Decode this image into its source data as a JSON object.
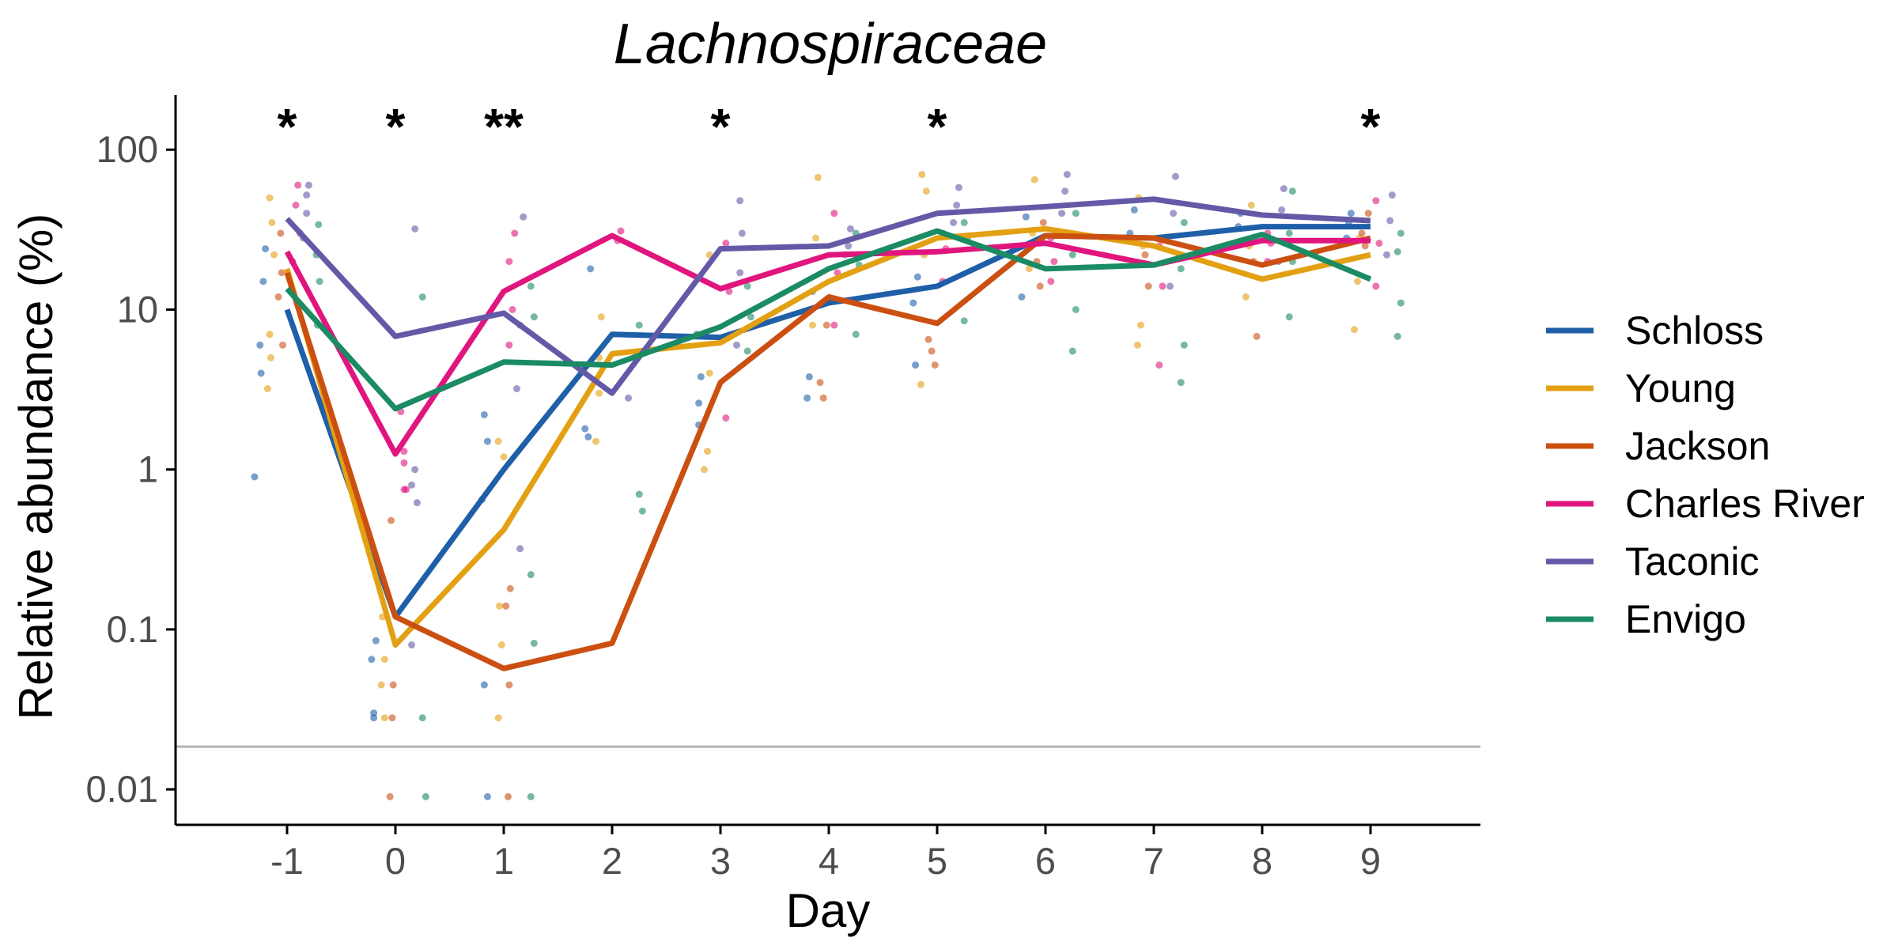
{
  "chart_data": {
    "type": "line",
    "title": "Lachnospiraceae",
    "xlabel": "Day",
    "ylabel": "Relative abundance (%)",
    "yscale": "log",
    "ylim": [
      0.006,
      220
    ],
    "yticks": [
      100,
      10,
      1,
      0.1,
      0.01
    ],
    "ytick_labels": [
      "100",
      "10",
      "1",
      "0.1",
      "0.01"
    ],
    "categories": [
      "-1",
      "0",
      "1",
      "2",
      "3",
      "4",
      "5",
      "6",
      "7",
      "8",
      "9"
    ],
    "reference_line": 0.0185,
    "grid": false,
    "legend": "right",
    "significance": [
      {
        "x": "-1",
        "label": "*"
      },
      {
        "x": "0",
        "label": "*"
      },
      {
        "x": "1",
        "label": "**"
      },
      {
        "x": "3",
        "label": "*"
      },
      {
        "x": "5",
        "label": "*"
      },
      {
        "x": "9",
        "label": "*"
      }
    ],
    "series": [
      {
        "name": "Schloss",
        "color": "#1f5fa8",
        "values": [
          10,
          0.12,
          1,
          7,
          6.7,
          11,
          14,
          29,
          28,
          33,
          33
        ]
      },
      {
        "name": "Young",
        "color": "#e3a012",
        "values": [
          18,
          0.08,
          0.42,
          5.3,
          6.2,
          15,
          28,
          32,
          25,
          15.5,
          22
        ]
      },
      {
        "name": "Jackson",
        "color": "#cc4f12",
        "values": [
          17,
          0.12,
          0.057,
          0.082,
          3.5,
          12,
          8.2,
          29,
          28,
          19,
          28
        ]
      },
      {
        "name": "Charles River",
        "color": "#e0157e",
        "values": [
          23,
          1.25,
          13,
          29,
          13.5,
          22,
          23,
          26,
          19,
          27,
          27
        ]
      },
      {
        "name": "Taconic",
        "color": "#6459a7",
        "values": [
          37,
          6.8,
          9.5,
          3,
          24,
          25,
          40,
          44,
          49,
          39,
          36
        ]
      },
      {
        "name": "Envigo",
        "color": "#1b8b64",
        "values": [
          13.5,
          2.4,
          4.7,
          4.5,
          7.8,
          18,
          31,
          18,
          19,
          29.5,
          15.5
        ]
      }
    ],
    "points": [
      {
        "name": "Schloss",
        "color": "#1f5fa8",
        "values": [
          [
            -1.3,
            0.9
          ],
          [
            -1.25,
            6
          ],
          [
            -1.22,
            15
          ],
          [
            -1.2,
            24
          ],
          [
            -1.24,
            4
          ],
          [
            -0.2,
            0.028
          ],
          [
            -0.22,
            0.065
          ],
          [
            -0.18,
            0.085
          ],
          [
            -0.2,
            0.03
          ],
          [
            0.85,
            0.009
          ],
          [
            0.82,
            0.045
          ],
          [
            0.8,
            0.65
          ],
          [
            0.85,
            1.5
          ],
          [
            0.82,
            2.2
          ],
          [
            1.75,
            1.8
          ],
          [
            1.78,
            1.6
          ],
          [
            1.8,
            18
          ],
          [
            2.8,
            2.6
          ],
          [
            2.82,
            3.8
          ],
          [
            2.78,
            7
          ],
          [
            2.8,
            1.9
          ],
          [
            3.8,
            2.8
          ],
          [
            3.82,
            3.8
          ],
          [
            3.85,
            13
          ],
          [
            4.8,
            4.5
          ],
          [
            4.78,
            11
          ],
          [
            4.82,
            16
          ],
          [
            5.78,
            12
          ],
          [
            5.8,
            25
          ],
          [
            5.82,
            38
          ],
          [
            6.78,
            30
          ],
          [
            6.82,
            42
          ],
          [
            7.78,
            33
          ],
          [
            7.8,
            40
          ],
          [
            8.78,
            28
          ],
          [
            8.8,
            35
          ],
          [
            8.82,
            40
          ]
        ]
      },
      {
        "name": "Young",
        "color": "#e3a012",
        "values": [
          [
            -1.18,
            3.2
          ],
          [
            -1.15,
            5
          ],
          [
            -1.16,
            7
          ],
          [
            -1.12,
            22
          ],
          [
            -1.14,
            35
          ],
          [
            -1.16,
            50
          ],
          [
            -0.12,
            0.12
          ],
          [
            -0.1,
            0.065
          ],
          [
            -0.13,
            0.045
          ],
          [
            -0.1,
            0.028
          ],
          [
            0.95,
            0.028
          ],
          [
            0.98,
            0.08
          ],
          [
            0.96,
            0.14
          ],
          [
            1,
            1.2
          ],
          [
            0.95,
            1.5
          ],
          [
            1.85,
            1.5
          ],
          [
            1.88,
            3
          ],
          [
            1.9,
            9
          ],
          [
            1.88,
            5
          ],
          [
            2.85,
            1
          ],
          [
            2.88,
            1.3
          ],
          [
            2.9,
            4
          ],
          [
            2.86,
            7
          ],
          [
            2.9,
            22
          ],
          [
            3.85,
            8
          ],
          [
            3.88,
            28
          ],
          [
            3.9,
            67
          ],
          [
            4.85,
            3.4
          ],
          [
            4.88,
            22
          ],
          [
            4.9,
            55
          ],
          [
            4.86,
            70
          ],
          [
            5.85,
            18
          ],
          [
            5.88,
            30
          ],
          [
            5.9,
            65
          ],
          [
            6.85,
            6
          ],
          [
            6.88,
            8
          ],
          [
            6.9,
            25
          ],
          [
            6.86,
            50
          ],
          [
            7.85,
            12
          ],
          [
            7.88,
            25
          ],
          [
            7.9,
            45
          ],
          [
            8.85,
            7.5
          ],
          [
            8.88,
            15
          ],
          [
            8.9,
            28
          ]
        ]
      },
      {
        "name": "Jackson",
        "color": "#cc4f12",
        "values": [
          [
            -1.08,
            12
          ],
          [
            -1.05,
            17
          ],
          [
            -1.06,
            30
          ],
          [
            -1.04,
            6
          ],
          [
            -0.05,
            0.009
          ],
          [
            -0.03,
            0.028
          ],
          [
            -0.02,
            0.045
          ],
          [
            -0.04,
            0.48
          ],
          [
            1.04,
            0.009
          ],
          [
            1.05,
            0.045
          ],
          [
            1.06,
            0.18
          ],
          [
            1.02,
            0.14
          ],
          [
            3.95,
            2.8
          ],
          [
            3.92,
            3.5
          ],
          [
            3.98,
            8
          ],
          [
            4.95,
            5.5
          ],
          [
            4.92,
            6.5
          ],
          [
            4.98,
            4.5
          ],
          [
            5.95,
            14
          ],
          [
            5.92,
            20
          ],
          [
            5.98,
            35
          ],
          [
            6.95,
            14
          ],
          [
            6.92,
            22
          ],
          [
            7.95,
            6.8
          ],
          [
            7.92,
            20
          ],
          [
            8.95,
            25
          ],
          [
            8.92,
            30
          ],
          [
            8.98,
            40
          ]
        ]
      },
      {
        "name": "Charles River",
        "color": "#e0157e",
        "values": [
          [
            -0.95,
            20
          ],
          [
            -0.92,
            45
          ],
          [
            -0.9,
            60
          ],
          [
            -0.88,
            30
          ],
          [
            0.08,
            1.3
          ],
          [
            0.1,
            0.75
          ],
          [
            0.05,
            2.3
          ],
          [
            0.08,
            0.75
          ],
          [
            0.08,
            1.1
          ],
          [
            1.05,
            6
          ],
          [
            1.08,
            10
          ],
          [
            1.05,
            20
          ],
          [
            1.1,
            30
          ],
          [
            2.05,
            27
          ],
          [
            2.08,
            31
          ],
          [
            3.05,
            2.1
          ],
          [
            3.08,
            13
          ],
          [
            3.05,
            26
          ],
          [
            4.05,
            8
          ],
          [
            4.08,
            17
          ],
          [
            4.05,
            40
          ],
          [
            5.05,
            15
          ],
          [
            5.08,
            24
          ],
          [
            5.05,
            30
          ],
          [
            6.05,
            15
          ],
          [
            6.08,
            20
          ],
          [
            6.05,
            28
          ],
          [
            7.05,
            4.5
          ],
          [
            7.08,
            14
          ],
          [
            7.05,
            25
          ],
          [
            8.05,
            20
          ],
          [
            8.08,
            26
          ],
          [
            8.05,
            30
          ],
          [
            9.05,
            14
          ],
          [
            9.08,
            26
          ],
          [
            9.05,
            48
          ]
        ]
      },
      {
        "name": "Taconic",
        "color": "#6459a7",
        "values": [
          [
            -0.85,
            28
          ],
          [
            -0.82,
            40
          ],
          [
            -0.82,
            52
          ],
          [
            -0.8,
            60
          ],
          [
            0.15,
            0.08
          ],
          [
            0.18,
            1
          ],
          [
            0.2,
            0.62
          ],
          [
            0.18,
            32
          ],
          [
            0.15,
            0.8
          ],
          [
            1.15,
            0.32
          ],
          [
            1.12,
            3.2
          ],
          [
            1.15,
            8
          ],
          [
            1.18,
            38
          ],
          [
            2.15,
            2.8
          ],
          [
            3.15,
            6
          ],
          [
            3.18,
            17
          ],
          [
            3.2,
            30
          ],
          [
            3.18,
            48
          ],
          [
            4.15,
            22
          ],
          [
            4.18,
            25
          ],
          [
            4.2,
            32
          ],
          [
            5.15,
            35
          ],
          [
            5.18,
            45
          ],
          [
            5.2,
            58
          ],
          [
            6.15,
            40
          ],
          [
            6.18,
            55
          ],
          [
            6.2,
            70
          ],
          [
            7.15,
            14
          ],
          [
            7.18,
            40
          ],
          [
            7.2,
            68
          ],
          [
            8.15,
            20
          ],
          [
            8.18,
            42
          ],
          [
            8.2,
            57
          ],
          [
            9.15,
            22
          ],
          [
            9.18,
            36
          ],
          [
            9.2,
            52
          ]
        ]
      },
      {
        "name": "Envigo",
        "color": "#1b8b64",
        "values": [
          [
            -0.72,
            8
          ],
          [
            -0.7,
            15
          ],
          [
            -0.73,
            22
          ],
          [
            -0.71,
            34
          ],
          [
            0.25,
            0.028
          ],
          [
            0.28,
            0.009
          ],
          [
            0.25,
            12
          ],
          [
            1.25,
            0.009
          ],
          [
            1.28,
            0.082
          ],
          [
            1.25,
            0.22
          ],
          [
            1.28,
            9
          ],
          [
            1.25,
            14
          ],
          [
            2.25,
            0.7
          ],
          [
            2.28,
            0.55
          ],
          [
            2.25,
            8
          ],
          [
            3.25,
            5.5
          ],
          [
            3.28,
            9
          ],
          [
            3.25,
            14
          ],
          [
            4.25,
            7
          ],
          [
            4.28,
            19
          ],
          [
            4.25,
            30
          ],
          [
            5.25,
            8.5
          ],
          [
            5.28,
            28
          ],
          [
            5.25,
            35
          ],
          [
            6.25,
            5.5
          ],
          [
            6.28,
            10
          ],
          [
            6.25,
            22
          ],
          [
            6.28,
            40
          ],
          [
            7.25,
            3.5
          ],
          [
            7.28,
            6
          ],
          [
            7.25,
            18
          ],
          [
            7.28,
            35
          ],
          [
            8.25,
            9
          ],
          [
            8.28,
            20
          ],
          [
            8.25,
            30
          ],
          [
            8.28,
            55
          ],
          [
            9.25,
            6.8
          ],
          [
            9.28,
            11
          ],
          [
            9.25,
            23
          ],
          [
            9.28,
            30
          ]
        ]
      }
    ]
  }
}
